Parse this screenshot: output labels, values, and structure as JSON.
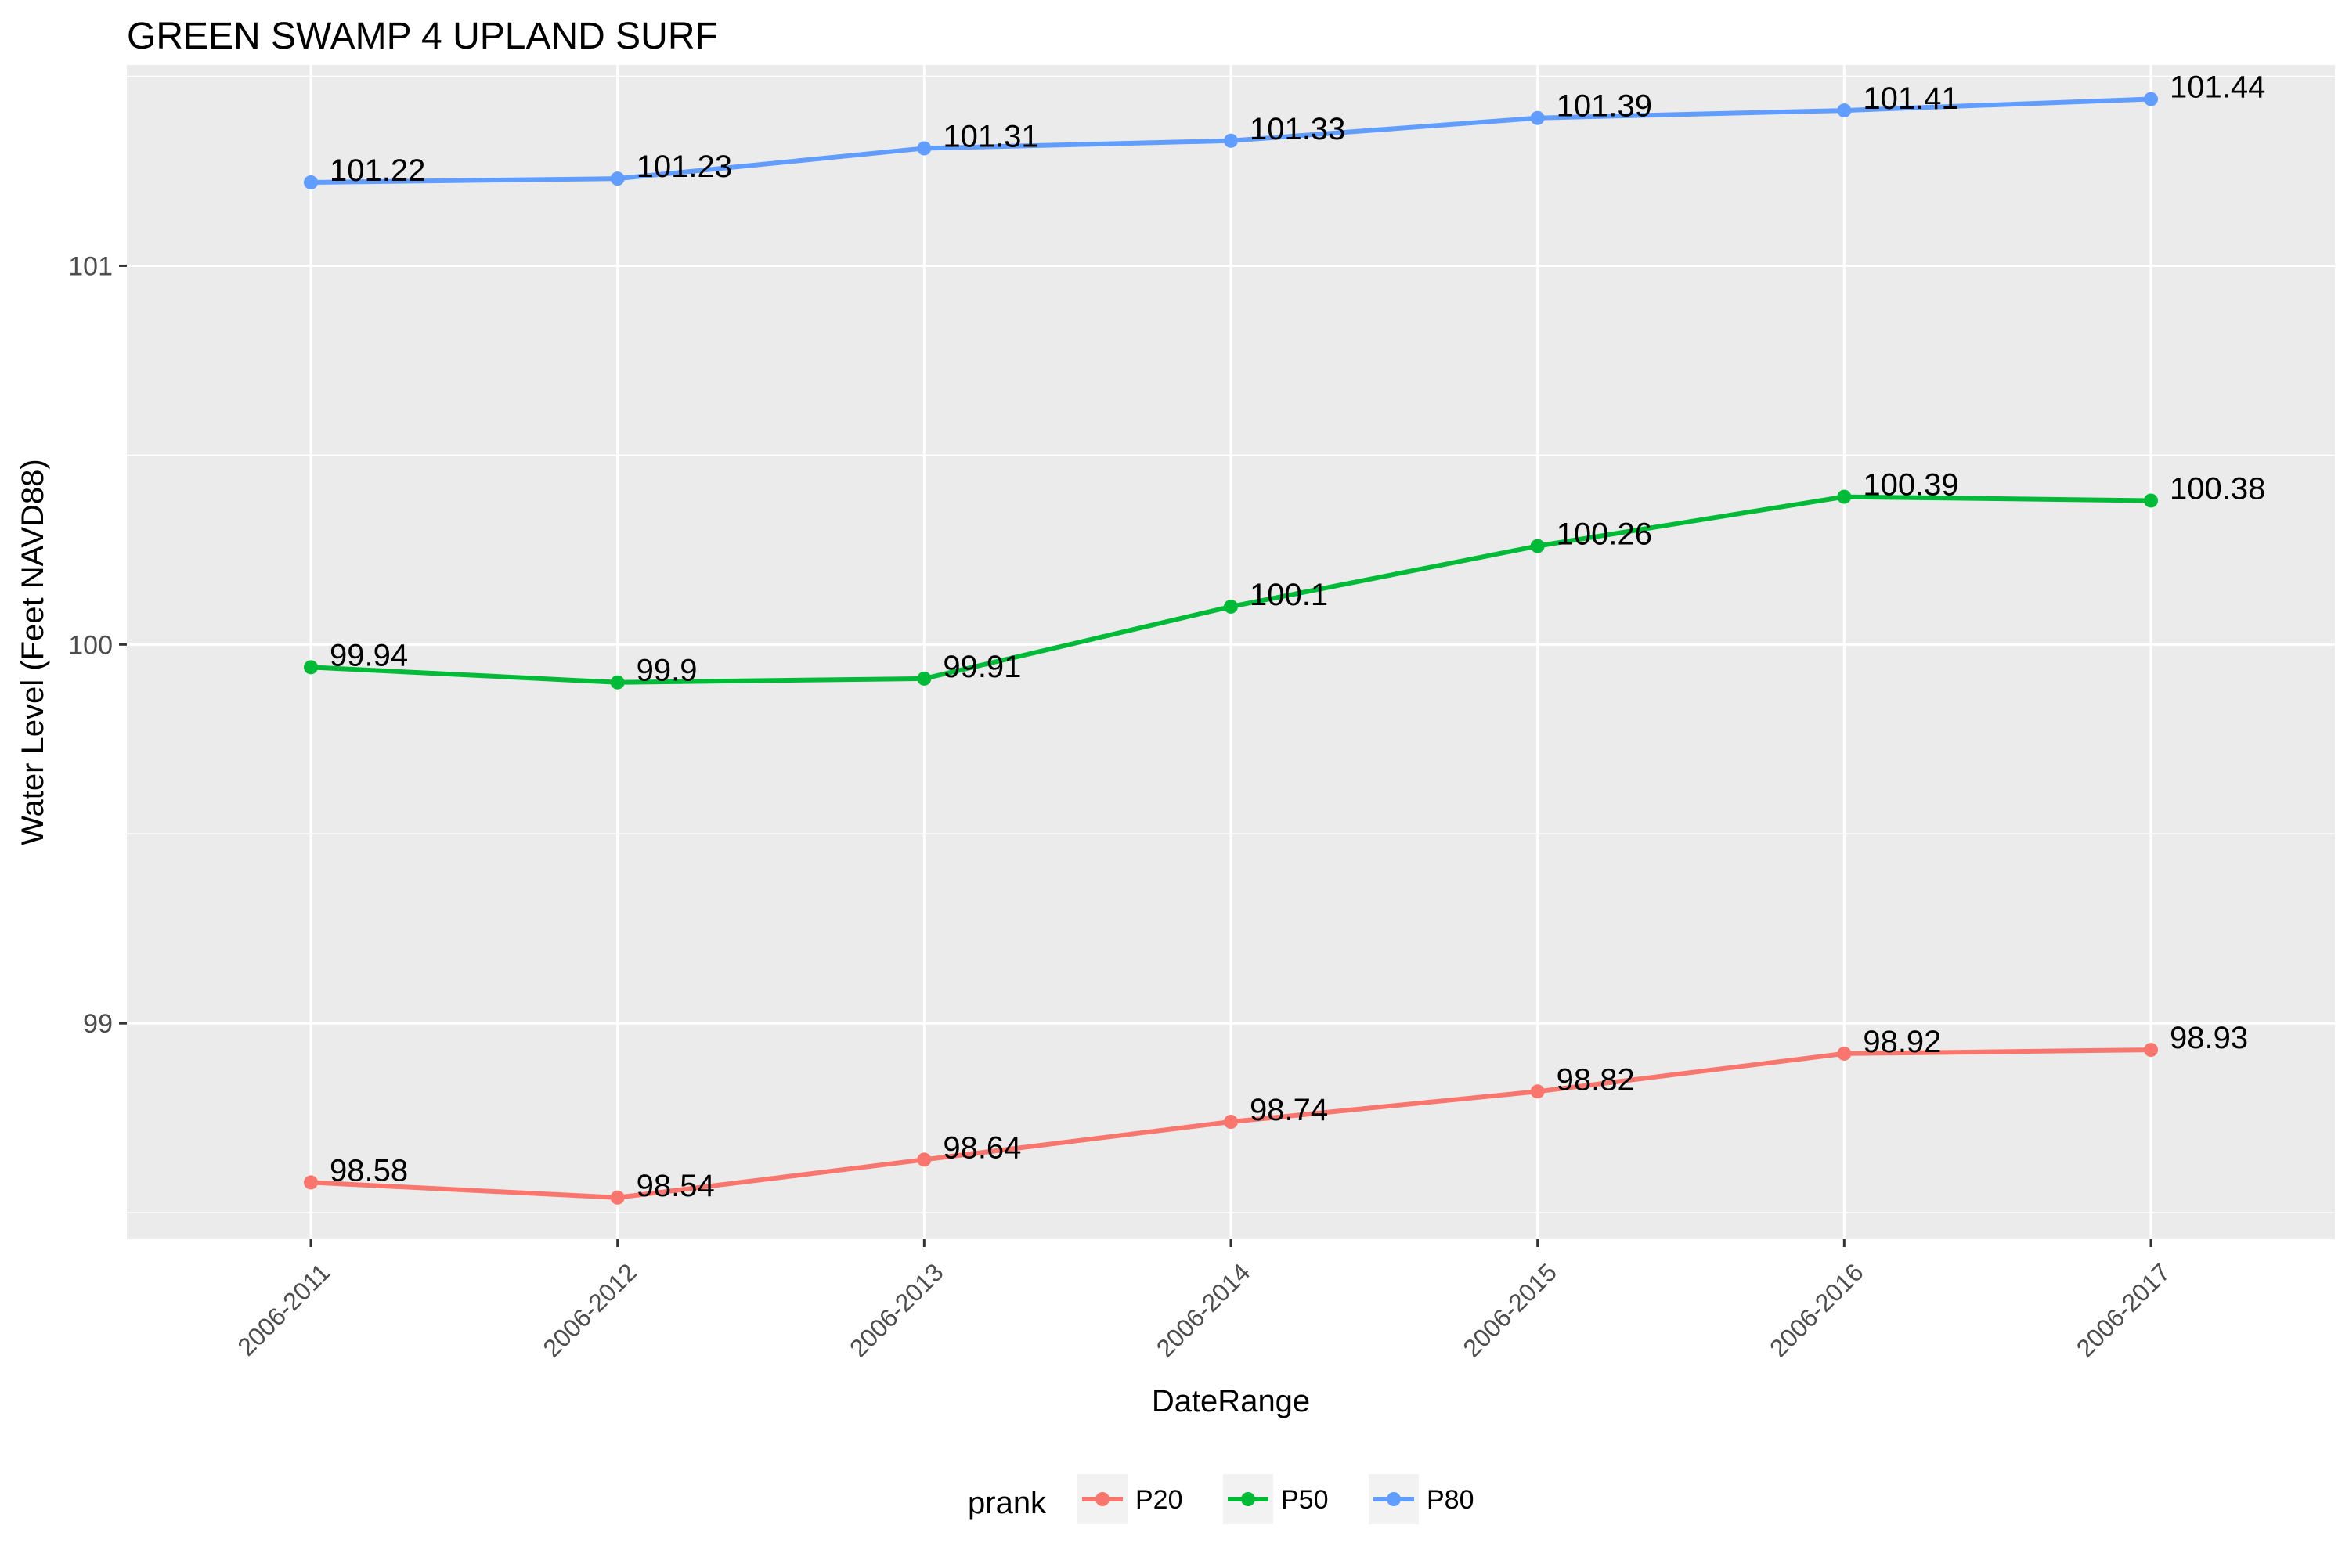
{
  "chart_data": {
    "type": "line",
    "title": "GREEN SWAMP 4 UPLAND SURF",
    "xlabel": "DateRange",
    "ylabel": "Water Level (Feet NAVD88)",
    "categories": [
      "2006-2011",
      "2006-2012",
      "2006-2013",
      "2006-2014",
      "2006-2015",
      "2006-2016",
      "2006-2017"
    ],
    "y_ticks": [
      99,
      100,
      101
    ],
    "y_tick_labels": [
      "99",
      "100",
      "101"
    ],
    "ylim": [
      98.43,
      101.53
    ],
    "grid": true,
    "legend": {
      "title": "prank",
      "position": "bottom"
    },
    "series": [
      {
        "name": "P20",
        "color": "#F8766D",
        "values": [
          98.58,
          98.54,
          98.64,
          98.74,
          98.82,
          98.92,
          98.93
        ],
        "labels": [
          "98.58",
          "98.54",
          "98.64",
          "98.74",
          "98.82",
          "98.92",
          "98.93"
        ]
      },
      {
        "name": "P50",
        "color": "#00BA38",
        "values": [
          99.94,
          99.9,
          99.91,
          100.1,
          100.26,
          100.39,
          100.38
        ],
        "labels": [
          "99.94",
          "99.9",
          "99.91",
          "100.1",
          "100.26",
          "100.39",
          "100.38"
        ]
      },
      {
        "name": "P80",
        "color": "#619CFF",
        "values": [
          101.22,
          101.23,
          101.31,
          101.33,
          101.39,
          101.41,
          101.44
        ],
        "labels": [
          "101.22",
          "101.23",
          "101.31",
          "101.33",
          "101.39",
          "101.41",
          "101.44"
        ]
      }
    ]
  }
}
